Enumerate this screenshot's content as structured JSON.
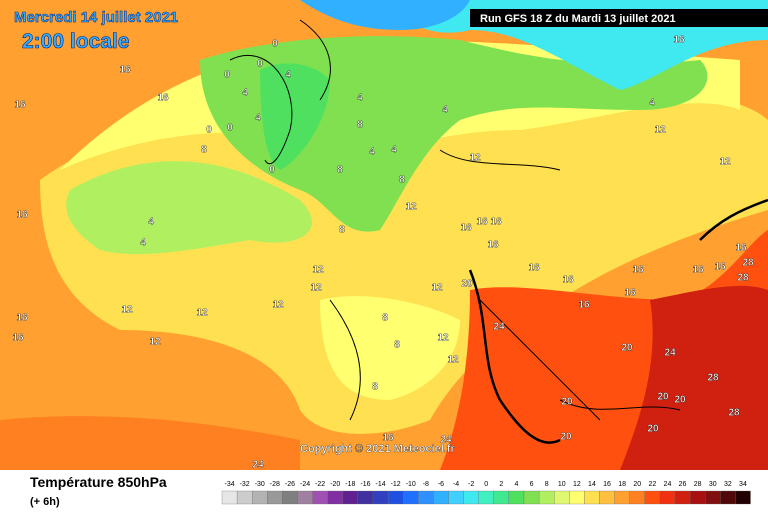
{
  "header": {
    "date": "Mercredi 14 juillet 2021",
    "time": "2:00 locale",
    "run": "Run GFS 18 Z du Mardi 13 juillet 2021"
  },
  "map": {
    "copyright": "Copyright © 2021 Meteociel.fr",
    "contour_labels": [
      16,
      16,
      16,
      0,
      0,
      4,
      0,
      4,
      4,
      0,
      0,
      8,
      4,
      4,
      8,
      4,
      4,
      0,
      8,
      8,
      12,
      16,
      4,
      4,
      8,
      12,
      16,
      16,
      16,
      16,
      12,
      12,
      12,
      12,
      12,
      12,
      16,
      16,
      20,
      24,
      16,
      16,
      16,
      16,
      16,
      16,
      16,
      28,
      28,
      16,
      20,
      24,
      28,
      20,
      20,
      20,
      28,
      20,
      20,
      12,
      12,
      12,
      8,
      8,
      8,
      16,
      24,
      24,
      16,
      12,
      12,
      4
    ]
  },
  "footer": {
    "title": "Température 850hPa",
    "lead": "(+ 6h)"
  },
  "legend": {
    "ticks": [
      -34,
      -32,
      -30,
      -28,
      -26,
      -24,
      -22,
      -20,
      -18,
      -16,
      -14,
      -12,
      -10,
      -8,
      -6,
      -4,
      -2,
      0,
      2,
      4,
      6,
      8,
      10,
      12,
      14,
      16,
      18,
      20,
      22,
      24,
      26,
      28,
      30,
      32,
      34
    ],
    "colors": [
      "#e6e6e6",
      "#cccccc",
      "#b3b3b3",
      "#999999",
      "#7f7f7f",
      "#a080a0",
      "#a050b0",
      "#8030a0",
      "#602090",
      "#4030a0",
      "#3040c0",
      "#2050e0",
      "#2070ff",
      "#3090ff",
      "#30b0ff",
      "#40d0ff",
      "#40e8f0",
      "#40f0c0",
      "#40e890",
      "#50e060",
      "#80e050",
      "#b0f060",
      "#e0f870",
      "#ffff70",
      "#ffe050",
      "#ffc040",
      "#ffa030",
      "#ff8020",
      "#ff5010",
      "#f03010",
      "#d02010",
      "#a81010",
      "#801010",
      "#500808",
      "#200000"
    ]
  }
}
